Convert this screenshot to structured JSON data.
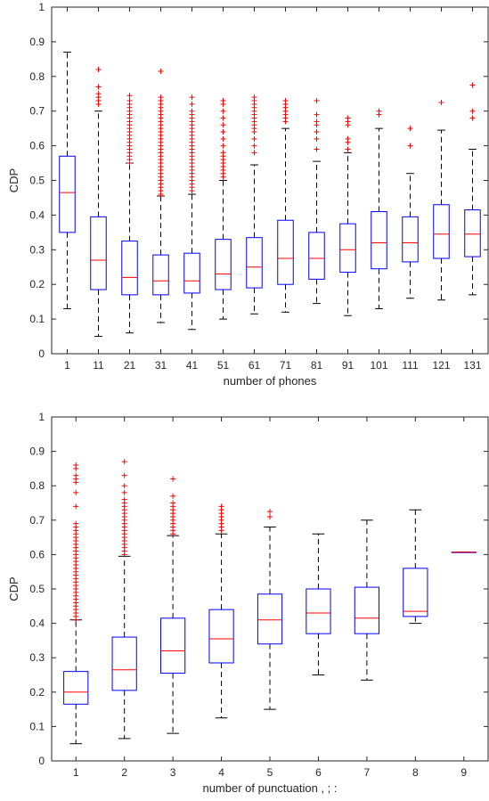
{
  "chart_data": [
    {
      "type": "box",
      "xlabel": "number of phones",
      "ylabel": "CDP",
      "ylim": [
        0,
        1
      ],
      "yticks": [
        "0",
        "0.1",
        "0.2",
        "0.3",
        "0.4",
        "0.5",
        "0.6",
        "0.7",
        "0.8",
        "0.9",
        "1"
      ],
      "grid": false,
      "colors": {
        "box": "#0000ff",
        "median": "#ff0000",
        "whisker": "#000000",
        "outlier": "#ff0000"
      },
      "categories": [
        "1",
        "11",
        "21",
        "31",
        "41",
        "51",
        "61",
        "71",
        "81",
        "91",
        "101",
        "111",
        "121",
        "131"
      ],
      "boxes": [
        {
          "q1": 0.35,
          "median": 0.465,
          "q3": 0.57,
          "low": 0.13,
          "high": 0.87,
          "outliers": []
        },
        {
          "q1": 0.185,
          "median": 0.27,
          "q3": 0.395,
          "low": 0.05,
          "high": 0.7,
          "outliers": [
            0.72,
            0.73,
            0.74,
            0.75,
            0.77,
            0.82
          ]
        },
        {
          "q1": 0.17,
          "median": 0.22,
          "q3": 0.325,
          "low": 0.06,
          "high": 0.55,
          "outliers": [
            0.55,
            0.56,
            0.57,
            0.58,
            0.59,
            0.6,
            0.61,
            0.62,
            0.63,
            0.64,
            0.65,
            0.66,
            0.67,
            0.68,
            0.69,
            0.7,
            0.71,
            0.72,
            0.73,
            0.745
          ]
        },
        {
          "q1": 0.17,
          "median": 0.21,
          "q3": 0.285,
          "low": 0.09,
          "high": 0.455,
          "outliers": [
            0.46,
            0.47,
            0.48,
            0.49,
            0.5,
            0.51,
            0.52,
            0.53,
            0.54,
            0.55,
            0.56,
            0.57,
            0.58,
            0.59,
            0.6,
            0.61,
            0.62,
            0.63,
            0.64,
            0.65,
            0.66,
            0.67,
            0.68,
            0.69,
            0.7,
            0.71,
            0.72,
            0.73,
            0.74,
            0.815
          ]
        },
        {
          "q1": 0.175,
          "median": 0.21,
          "q3": 0.29,
          "low": 0.07,
          "high": 0.46,
          "outliers": [
            0.47,
            0.48,
            0.49,
            0.5,
            0.51,
            0.52,
            0.53,
            0.54,
            0.55,
            0.56,
            0.57,
            0.58,
            0.59,
            0.6,
            0.61,
            0.62,
            0.63,
            0.64,
            0.65,
            0.66,
            0.67,
            0.68,
            0.69,
            0.7,
            0.72,
            0.74
          ]
        },
        {
          "q1": 0.185,
          "median": 0.23,
          "q3": 0.33,
          "low": 0.1,
          "high": 0.5,
          "outliers": [
            0.51,
            0.52,
            0.53,
            0.54,
            0.55,
            0.56,
            0.57,
            0.58,
            0.6,
            0.62,
            0.64,
            0.66,
            0.68,
            0.7,
            0.72,
            0.73
          ]
        },
        {
          "q1": 0.19,
          "median": 0.25,
          "q3": 0.335,
          "low": 0.115,
          "high": 0.545,
          "outliers": [
            0.58,
            0.6,
            0.62,
            0.64,
            0.65,
            0.66,
            0.67,
            0.68,
            0.69,
            0.7,
            0.71,
            0.72,
            0.73,
            0.74
          ]
        },
        {
          "q1": 0.2,
          "median": 0.275,
          "q3": 0.385,
          "low": 0.12,
          "high": 0.65,
          "outliers": [
            0.67,
            0.68,
            0.69,
            0.7,
            0.71,
            0.72,
            0.73
          ]
        },
        {
          "q1": 0.215,
          "median": 0.275,
          "q3": 0.35,
          "low": 0.145,
          "high": 0.555,
          "outliers": [
            0.59,
            0.62,
            0.64,
            0.66,
            0.67,
            0.69,
            0.73
          ]
        },
        {
          "q1": 0.235,
          "median": 0.3,
          "q3": 0.375,
          "low": 0.11,
          "high": 0.58,
          "outliers": [
            0.59,
            0.61,
            0.62,
            0.66,
            0.67,
            0.68
          ]
        },
        {
          "q1": 0.245,
          "median": 0.32,
          "q3": 0.41,
          "low": 0.13,
          "high": 0.65,
          "outliers": [
            0.69,
            0.7
          ]
        },
        {
          "q1": 0.265,
          "median": 0.32,
          "q3": 0.395,
          "low": 0.16,
          "high": 0.52,
          "outliers": [
            0.6,
            0.65
          ]
        },
        {
          "q1": 0.275,
          "median": 0.345,
          "q3": 0.43,
          "low": 0.155,
          "high": 0.645,
          "outliers": [
            0.725
          ]
        },
        {
          "q1": 0.28,
          "median": 0.345,
          "q3": 0.415,
          "low": 0.17,
          "high": 0.59,
          "outliers": [
            0.68,
            0.7,
            0.775
          ]
        }
      ]
    },
    {
      "type": "box",
      "xlabel": "number of punctuation , ; :",
      "ylabel": "CDP",
      "ylim": [
        0,
        1
      ],
      "yticks": [
        "0",
        "0.1",
        "0.2",
        "0.3",
        "0.4",
        "0.5",
        "0.6",
        "0.7",
        "0.8",
        "0.9",
        "1"
      ],
      "grid": false,
      "colors": {
        "box": "#0000ff",
        "median": "#ff0000",
        "whisker": "#000000",
        "outlier": "#ff0000"
      },
      "categories": [
        "1",
        "2",
        "3",
        "4",
        "5",
        "6",
        "7",
        "8",
        "9"
      ],
      "boxes": [
        {
          "q1": 0.165,
          "median": 0.2,
          "q3": 0.26,
          "low": 0.05,
          "high": 0.41,
          "outliers": [
            0.41,
            0.42,
            0.43,
            0.44,
            0.45,
            0.46,
            0.47,
            0.48,
            0.49,
            0.5,
            0.51,
            0.52,
            0.53,
            0.54,
            0.55,
            0.56,
            0.57,
            0.58,
            0.59,
            0.6,
            0.61,
            0.62,
            0.63,
            0.64,
            0.65,
            0.66,
            0.67,
            0.68,
            0.69,
            0.74,
            0.78,
            0.81,
            0.82,
            0.83,
            0.85,
            0.86
          ]
        },
        {
          "q1": 0.205,
          "median": 0.265,
          "q3": 0.36,
          "low": 0.065,
          "high": 0.595,
          "outliers": [
            0.6,
            0.61,
            0.62,
            0.63,
            0.64,
            0.65,
            0.66,
            0.67,
            0.68,
            0.69,
            0.7,
            0.71,
            0.72,
            0.73,
            0.74,
            0.75,
            0.76,
            0.78,
            0.8,
            0.83,
            0.87
          ]
        },
        {
          "q1": 0.255,
          "median": 0.32,
          "q3": 0.415,
          "low": 0.08,
          "high": 0.655,
          "outliers": [
            0.66,
            0.67,
            0.68,
            0.69,
            0.7,
            0.71,
            0.72,
            0.73,
            0.74,
            0.75,
            0.77,
            0.82
          ]
        },
        {
          "q1": 0.285,
          "median": 0.355,
          "q3": 0.44,
          "low": 0.125,
          "high": 0.66,
          "outliers": [
            0.67,
            0.68,
            0.69,
            0.7,
            0.71,
            0.72,
            0.73,
            0.74
          ]
        },
        {
          "q1": 0.34,
          "median": 0.41,
          "q3": 0.485,
          "low": 0.15,
          "high": 0.68,
          "outliers": [
            0.71,
            0.725
          ]
        },
        {
          "q1": 0.37,
          "median": 0.43,
          "q3": 0.5,
          "low": 0.25,
          "high": 0.66,
          "outliers": []
        },
        {
          "q1": 0.37,
          "median": 0.415,
          "q3": 0.505,
          "low": 0.235,
          "high": 0.7,
          "outliers": []
        },
        {
          "q1": 0.42,
          "median": 0.435,
          "q3": 0.56,
          "low": 0.4,
          "high": 0.73,
          "outliers": []
        },
        {
          "q1": 0.607,
          "median": 0.607,
          "q3": 0.607,
          "low": 0.607,
          "high": 0.607,
          "outliers": []
        }
      ]
    }
  ]
}
